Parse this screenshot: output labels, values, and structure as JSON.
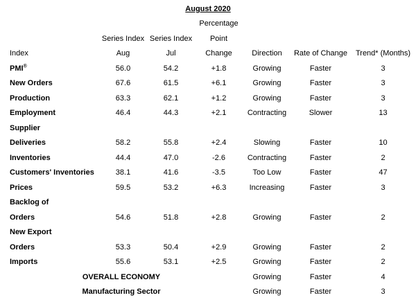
{
  "title": "August 2020",
  "header": {
    "percentage": "Percentage",
    "series_index_aug": "Series Index",
    "series_index_jul": "Series Index",
    "point": "Point",
    "index": "Index",
    "aug": "Aug",
    "jul": "Jul",
    "change": "Change",
    "direction": "Direction",
    "rate_of_change": "Rate of Change",
    "trend": "Trend* (Months)"
  },
  "rows": [
    {
      "type": "data",
      "label": "PMI",
      "label_sup": "®",
      "aug": "56.0",
      "jul": "54.2",
      "change": "+1.8",
      "direction": "Growing",
      "rate": "Faster",
      "trend": "3"
    },
    {
      "type": "data",
      "label": "New Orders",
      "aug": "67.6",
      "jul": "61.5",
      "change": "+6.1",
      "direction": "Growing",
      "rate": "Faster",
      "trend": "3"
    },
    {
      "type": "data",
      "label": "Production",
      "aug": "63.3",
      "jul": "62.1",
      "change": "+1.2",
      "direction": "Growing",
      "rate": "Faster",
      "trend": "3"
    },
    {
      "type": "data",
      "label": "Employment",
      "aug": "46.4",
      "jul": "44.3",
      "change": "+2.1",
      "direction": "Contracting",
      "rate": "Slower",
      "trend": "13"
    },
    {
      "type": "section",
      "label": "Supplier"
    },
    {
      "type": "data",
      "label": "Deliveries",
      "aug": "58.2",
      "jul": "55.8",
      "change": "+2.4",
      "direction": "Slowing",
      "rate": "Faster",
      "trend": "10"
    },
    {
      "type": "data",
      "label": "Inventories",
      "aug": "44.4",
      "jul": "47.0",
      "change": "-2.6",
      "direction": "Contracting",
      "rate": "Faster",
      "trend": "2"
    },
    {
      "type": "data",
      "label": "Customers' Inventories",
      "aug": "38.1",
      "jul": "41.6",
      "change": "-3.5",
      "direction": "Too Low",
      "rate": "Faster",
      "trend": "47"
    },
    {
      "type": "data",
      "label": "Prices",
      "aug": "59.5",
      "jul": "53.2",
      "change": "+6.3",
      "direction": "Increasing",
      "rate": "Faster",
      "trend": "3"
    },
    {
      "type": "section",
      "label": "Backlog of"
    },
    {
      "type": "data",
      "label": "Orders",
      "aug": "54.6",
      "jul": "51.8",
      "change": "+2.8",
      "direction": "Growing",
      "rate": "Faster",
      "trend": "2"
    },
    {
      "type": "section",
      "label": "New Export"
    },
    {
      "type": "data",
      "label": "Orders",
      "aug": "53.3",
      "jul": "50.4",
      "change": "+2.9",
      "direction": "Growing",
      "rate": "Faster",
      "trend": "2"
    },
    {
      "type": "data",
      "label": "Imports",
      "aug": "55.6",
      "jul": "53.1",
      "change": "+2.5",
      "direction": "Growing",
      "rate": "Faster",
      "trend": "2"
    },
    {
      "type": "summary",
      "label": "OVERALL ECONOMY",
      "direction": "Growing",
      "rate": "Faster",
      "trend": "4"
    },
    {
      "type": "summary",
      "label": "Manufacturing Sector",
      "direction": "Growing",
      "rate": "Faster",
      "trend": "3"
    }
  ]
}
